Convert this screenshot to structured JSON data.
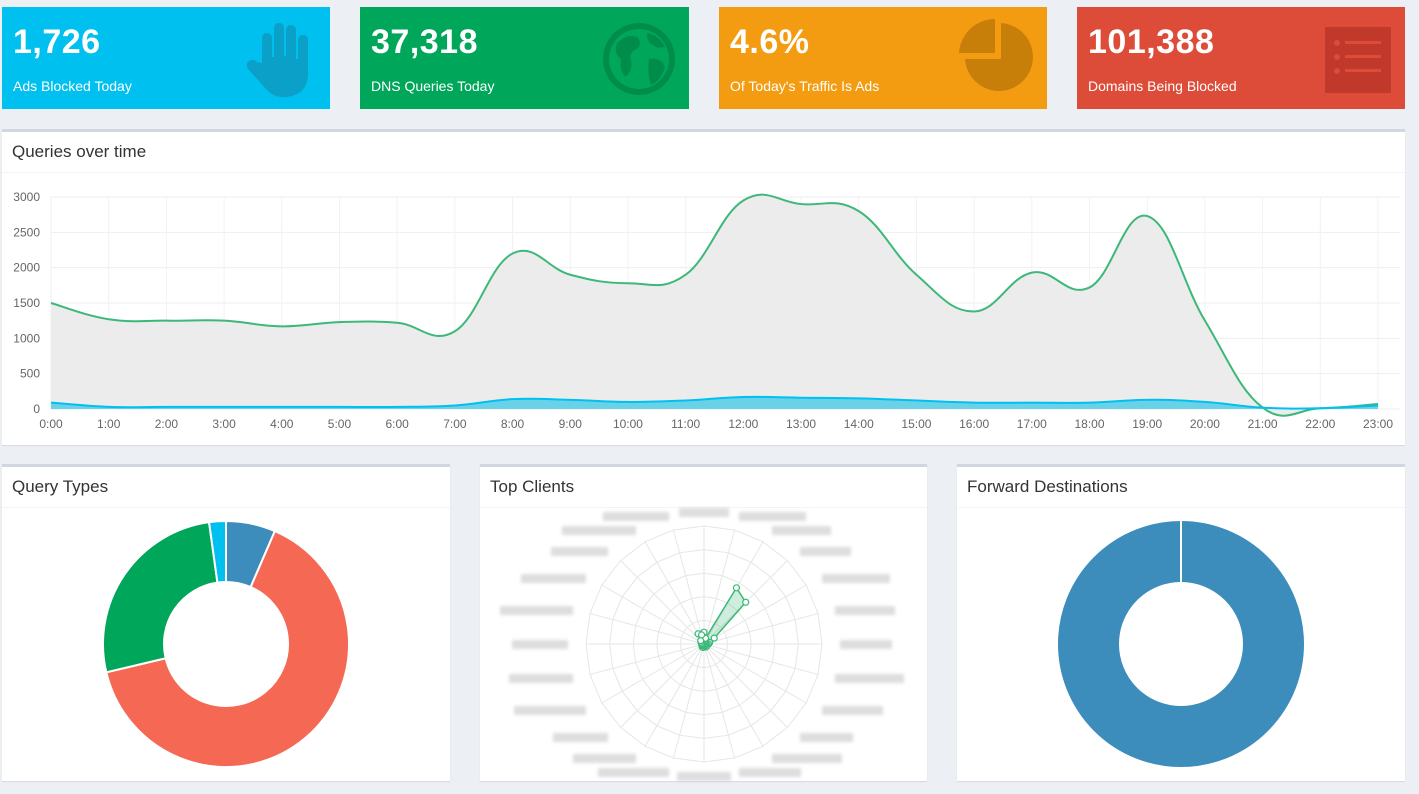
{
  "stats": [
    {
      "value": "1,726",
      "label": "Ads Blocked Today",
      "color": "#00c0ef",
      "icon": "hand-icon"
    },
    {
      "value": "37,318",
      "label": "DNS Queries Today",
      "color": "#00a65a",
      "icon": "globe-icon"
    },
    {
      "value": "4.6%",
      "label": "Of Today's Traffic Is Ads",
      "color": "#f39c12",
      "icon": "pie-chart-icon"
    },
    {
      "value": "101,388",
      "label": "Domains Being Blocked",
      "color": "#dd4b39",
      "icon": "list-icon"
    }
  ],
  "panels": {
    "queries_title": "Queries over time",
    "query_types_title": "Query Types",
    "top_clients_title": "Top Clients",
    "forward_title": "Forward Destinations"
  },
  "chart_data": [
    {
      "type": "area",
      "x": [
        "0:00",
        "1:00",
        "2:00",
        "3:00",
        "4:00",
        "5:00",
        "6:00",
        "7:00",
        "8:00",
        "9:00",
        "10:00",
        "11:00",
        "12:00",
        "13:00",
        "14:00",
        "15:00",
        "16:00",
        "17:00",
        "18:00",
        "19:00",
        "20:00",
        "21:00",
        "22:00",
        "23:00"
      ],
      "series": [
        {
          "color": "#3cb878",
          "fill": "#ececec",
          "values": [
            1500,
            1270,
            1250,
            1250,
            1170,
            1230,
            1220,
            1100,
            2200,
            1900,
            1780,
            1900,
            2950,
            2900,
            2800,
            1900,
            1380,
            1930,
            1720,
            2730,
            1250,
            20,
            10,
            70
          ]
        },
        {
          "color": "#00c0ef",
          "fill": "#5ccfe8",
          "values": [
            90,
            30,
            30,
            30,
            30,
            30,
            30,
            50,
            140,
            130,
            100,
            120,
            170,
            160,
            150,
            120,
            90,
            90,
            90,
            130,
            100,
            20,
            10,
            50
          ]
        }
      ],
      "ylim": [
        0,
        3000
      ],
      "yticks": [
        0,
        500,
        1000,
        1500,
        2000,
        2500,
        3000
      ],
      "grid": true
    },
    {
      "type": "pie",
      "values": [
        6.5,
        64.8,
        26.5,
        2.2
      ],
      "colors": [
        "#3c8dbc",
        "#f56954",
        "#00a65a",
        "#00c0ef"
      ]
    },
    {
      "type": "radar",
      "values": [
        0.1,
        0.05,
        0.55,
        0.5,
        0.1,
        0.05,
        0.04,
        0.03,
        0.02,
        0.03,
        0.03,
        0.02,
        0.02,
        0.03,
        0.03,
        0.02,
        0.02,
        0.02,
        0.02,
        0.02,
        0.03,
        0.04,
        0.1,
        0.08
      ],
      "color": "#3cb878"
    },
    {
      "type": "pie",
      "values": [
        100
      ],
      "colors": [
        "#3c8dbc"
      ]
    }
  ]
}
